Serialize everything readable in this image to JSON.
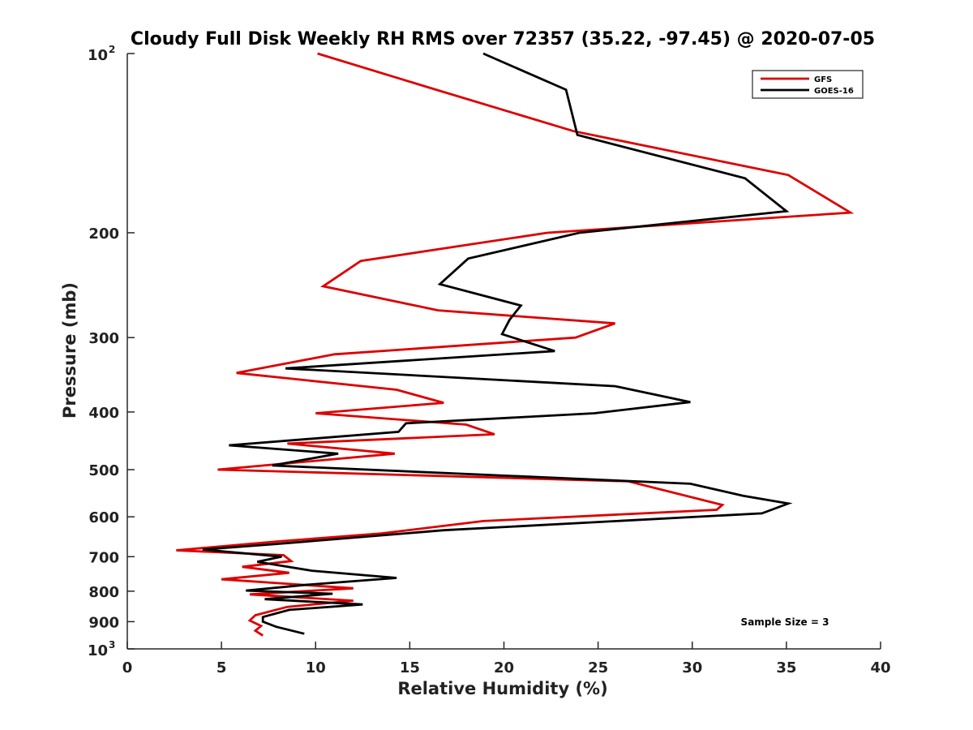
{
  "chart_data": {
    "type": "line",
    "title": "Cloudy Full Disk Weekly RH RMS over 72357 (35.22, -97.45) @ 2020-07-05",
    "xlabel": "Relative Humidity (%)",
    "ylabel": "Pressure (mb)",
    "xlim": [
      0,
      40
    ],
    "ylim": [
      100,
      1000
    ],
    "y_scale": "log",
    "y_reversed": true,
    "x_ticks": [
      "0",
      "5",
      "10",
      "15",
      "20",
      "25",
      "30",
      "35",
      "40"
    ],
    "y_ticks": [
      {
        "value": 100,
        "base": "10",
        "exp": "2"
      },
      {
        "value": 200,
        "label": "200"
      },
      {
        "value": 300,
        "label": "300"
      },
      {
        "value": 400,
        "label": "400"
      },
      {
        "value": 500,
        "label": "500"
      },
      {
        "value": 600,
        "label": "600"
      },
      {
        "value": 700,
        "label": "700"
      },
      {
        "value": 800,
        "label": "800"
      },
      {
        "value": 900,
        "label": "900"
      },
      {
        "value": 1000,
        "base": "10",
        "exp": "3"
      }
    ],
    "legend_position": "top-right",
    "annotation": "Sample Size = 3",
    "series": [
      {
        "name": "GFS",
        "color": "#dd0000",
        "points": [
          [
            10.1,
            100
          ],
          [
            16.4,
            115
          ],
          [
            23.7,
            135
          ],
          [
            35.1,
            160
          ],
          [
            38.4,
            185
          ],
          [
            22.3,
            200
          ],
          [
            12.4,
            223
          ],
          [
            10.4,
            246
          ],
          [
            16.5,
            270
          ],
          [
            25.9,
            284
          ],
          [
            23.8,
            300
          ],
          [
            11.0,
            320
          ],
          [
            5.8,
            344
          ],
          [
            14.3,
            367
          ],
          [
            16.8,
            386
          ],
          [
            10.0,
            402
          ],
          [
            18.0,
            420
          ],
          [
            19.5,
            436
          ],
          [
            8.5,
            452
          ],
          [
            14.2,
            470
          ],
          [
            4.8,
            500
          ],
          [
            26.6,
            523
          ],
          [
            31.6,
            573
          ],
          [
            31.3,
            584
          ],
          [
            18.9,
            610
          ],
          [
            13.5,
            640
          ],
          [
            8.0,
            660
          ],
          [
            2.6,
            683
          ],
          [
            8.3,
            696
          ],
          [
            8.7,
            712
          ],
          [
            6.1,
            728
          ],
          [
            8.6,
            745
          ],
          [
            5.0,
            764
          ],
          [
            12.0,
            791
          ],
          [
            6.5,
            810
          ],
          [
            12.0,
            830
          ],
          [
            8.5,
            850
          ],
          [
            6.8,
            878
          ],
          [
            6.5,
            896
          ],
          [
            7.1,
            915
          ],
          [
            6.8,
            932
          ],
          [
            7.2,
            950
          ]
        ]
      },
      {
        "name": "GOES-16",
        "color": "#000000",
        "points": [
          [
            18.9,
            100
          ],
          [
            23.3,
            115
          ],
          [
            23.9,
            137
          ],
          [
            32.8,
            162
          ],
          [
            35.0,
            184
          ],
          [
            24.0,
            200
          ],
          [
            18.1,
            221
          ],
          [
            16.6,
            244
          ],
          [
            20.9,
            265
          ],
          [
            20.3,
            280
          ],
          [
            19.9,
            296
          ],
          [
            22.7,
            316
          ],
          [
            8.4,
            338
          ],
          [
            25.9,
            362
          ],
          [
            29.9,
            385
          ],
          [
            24.8,
            402
          ],
          [
            14.8,
            418
          ],
          [
            14.4,
            432
          ],
          [
            5.4,
            455
          ],
          [
            11.2,
            470
          ],
          [
            7.7,
            492
          ],
          [
            29.9,
            528
          ],
          [
            32.7,
            553
          ],
          [
            35.1,
            570
          ],
          [
            33.7,
            592
          ],
          [
            16.8,
            632
          ],
          [
            7.8,
            667
          ],
          [
            4.0,
            681
          ],
          [
            8.2,
            700
          ],
          [
            6.9,
            714
          ],
          [
            9.8,
            739
          ],
          [
            14.3,
            760
          ],
          [
            9.6,
            780
          ],
          [
            6.3,
            798
          ],
          [
            10.9,
            808
          ],
          [
            7.3,
            825
          ],
          [
            12.5,
            842
          ],
          [
            8.6,
            860
          ],
          [
            7.2,
            884
          ],
          [
            7.2,
            900
          ],
          [
            7.9,
            918
          ],
          [
            9.4,
            943
          ]
        ]
      }
    ]
  }
}
